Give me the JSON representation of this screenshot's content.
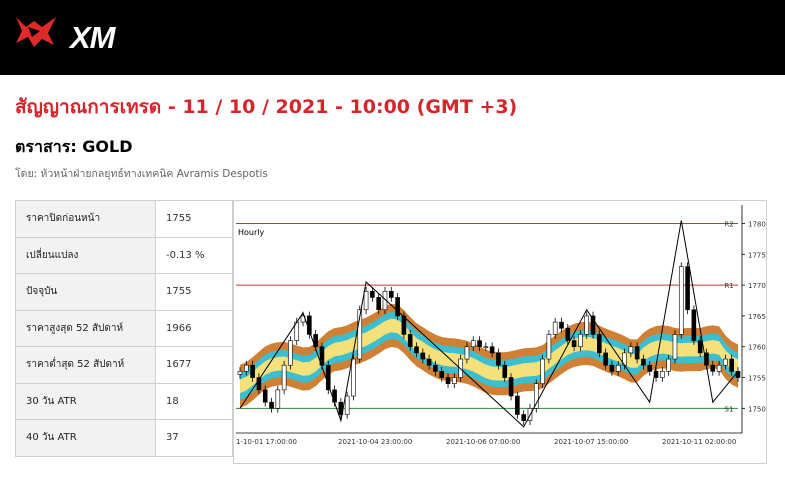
{
  "brand": {
    "name": "XM"
  },
  "headline": "สัญญาณการเทรด - 11 / 10 / 2021 - 10:00 (GMT +3)",
  "instrument_label": "ตราสาร: GOLD",
  "author_line": "โดย: หัวหน้าฝ่ายกลยุทธ์ทางเทคนิค Avramis Despotis",
  "stats": [
    {
      "label": "ราคาปิดก่อนหน้า",
      "value": "1755"
    },
    {
      "label": "เปลี่ยนแปลง",
      "value": "-0.13 %"
    },
    {
      "label": "ปัจจุบัน",
      "value": "1755"
    },
    {
      "label": "ราคาสูงสุด 52 สัปดาห์",
      "value": "1966"
    },
    {
      "label": "ราคาต่ำสุด 52 สัปดาห์",
      "value": "1677"
    },
    {
      "label": "30 วัน ATR",
      "value": "18"
    },
    {
      "label": "40 วัน ATR",
      "value": "37"
    }
  ],
  "chart_data": {
    "type": "candlestick",
    "timeframe_label": "Hourly",
    "x_tick_labels": [
      "1-10-01 17:00:00",
      "2021-10-04 23:00:00",
      "2021-10-06 07:00:00",
      "2021-10-07 15:00:00",
      "2021-10-11 02:00:00"
    ],
    "y_ticks": [
      1750,
      1755,
      1760,
      1765,
      1770,
      1775,
      1780
    ],
    "ylim": [
      1746,
      1783
    ],
    "levels": [
      {
        "name": "R2",
        "value": 1780,
        "color": "#c0392b"
      },
      {
        "name": "R1",
        "value": 1770,
        "color": "#c0392b"
      },
      {
        "name": "S1",
        "value": 1750,
        "color": "#2e8b3a"
      }
    ],
    "band_colors": {
      "outer": "#d07f33",
      "middle": "#3bbfd0",
      "inner": "#f5e07a"
    },
    "close_series": [
      1756,
      1757,
      1755,
      1753,
      1751,
      1750,
      1753,
      1757,
      1761,
      1764,
      1765,
      1762,
      1760,
      1757,
      1753,
      1751,
      1749,
      1752,
      1758,
      1766,
      1769,
      1768,
      1766,
      1769,
      1768,
      1765,
      1762,
      1760,
      1759,
      1758,
      1757,
      1756,
      1755,
      1754,
      1755,
      1758,
      1760,
      1761,
      1760,
      1760,
      1759,
      1757,
      1755,
      1752,
      1749,
      1748,
      1750,
      1754,
      1758,
      1762,
      1764,
      1763,
      1761,
      1760,
      1762,
      1765,
      1762,
      1759,
      1757,
      1756,
      1757,
      1759,
      1760,
      1758,
      1757,
      1756,
      1755,
      1756,
      1758,
      1762,
      1773,
      1766,
      1761,
      1759,
      1757,
      1756,
      1757,
      1758,
      1756,
      1755
    ]
  }
}
